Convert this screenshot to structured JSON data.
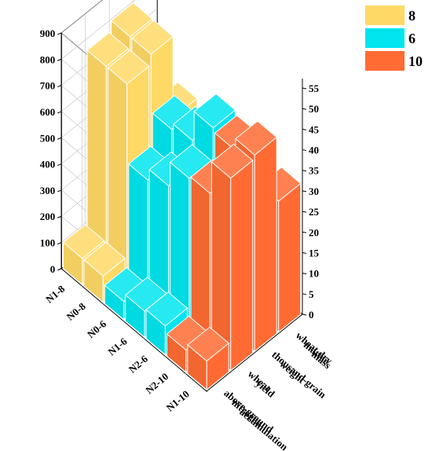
{
  "chart_data": {
    "type": "bar",
    "subtype": "3d-bar",
    "title": "",
    "categories": [
      "N1-10",
      "N2-10",
      "N2-6",
      "N1-6",
      "N0-6",
      "N0-8",
      "N1-8"
    ],
    "groups": [
      "above-ground nitrogen accumulation",
      "wheat yield",
      "thousand-grain weight",
      "wheat dry matter mass"
    ],
    "group_labels": [
      [
        "above-ground",
        "nitrogen",
        "accumulation"
      ],
      [
        "wheat",
        "yield"
      ],
      [
        "thousand-grain",
        "weight"
      ],
      [
        "wheat dry",
        "matter",
        "mass"
      ]
    ],
    "left_axis": {
      "ticks": [
        0,
        100,
        200,
        300,
        400,
        500,
        600,
        700,
        800,
        900
      ],
      "ylim": [
        0,
        900
      ]
    },
    "right_axis": {
      "ticks": [
        0,
        5,
        10,
        15,
        20,
        25,
        30,
        35,
        40,
        45,
        50,
        55
      ],
      "ylim": [
        0,
        55
      ]
    },
    "legend": {
      "position": "top-right",
      "items": [
        {
          "label": "8",
          "color": "#FFD966"
        },
        {
          "label": "6",
          "color": "#00E5EE"
        },
        {
          "label": "10",
          "color": "#FF6B33"
        }
      ]
    },
    "series": [
      {
        "name": "10",
        "color": "#FF6B33",
        "rows": [
          0,
          1
        ],
        "values": [
          [
            110,
            735,
            750,
            500
          ],
          [
            85,
            610,
            705,
            460
          ]
        ]
      },
      {
        "name": "6",
        "color": "#00E5EE",
        "rows": [
          2,
          3,
          4
        ],
        "values": [
          [
            110,
            600,
            720,
            440
          ],
          [
            100,
            505,
            605,
            400
          ],
          [
            70,
            460,
            580,
            450
          ]
        ]
      },
      {
        "name": "8",
        "color": "#FFD966",
        "rows": [
          5,
          6
        ],
        "values": [
          [
            100,
            760,
            800,
            490
          ],
          [
            100,
            760,
            800,
            470
          ]
        ]
      }
    ]
  }
}
